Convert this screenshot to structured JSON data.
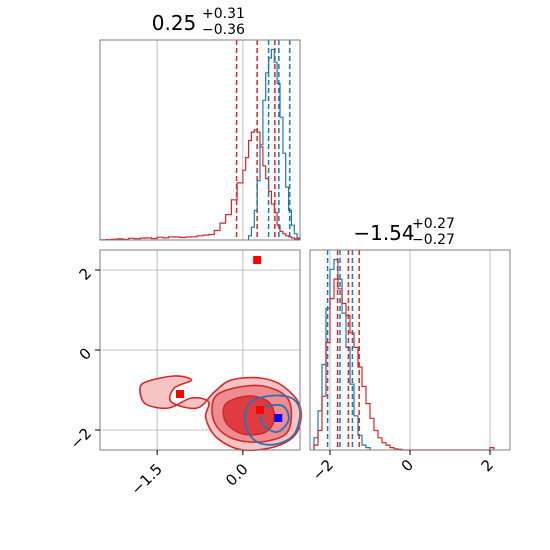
{
  "chart_data": [
    {
      "type": "histogram",
      "panel": "top-left",
      "title": {
        "value": "0.25",
        "upper": "+0.31",
        "lower": "−0.36"
      },
      "xlim": [
        -2.5,
        1.0
      ],
      "x_grid": [
        -1.5,
        0.0
      ],
      "grid": true,
      "series": [
        {
          "color": "#d62728",
          "edges": [
            -2.5,
            -2.4,
            -2.3,
            -2.2,
            -2.1,
            -2.0,
            -1.9,
            -1.8,
            -1.7,
            -1.6,
            -1.5,
            -1.4,
            -1.3,
            -1.2,
            -1.1,
            -1.0,
            -0.9,
            -0.8,
            -0.7,
            -0.6,
            -0.5,
            -0.4,
            -0.3,
            -0.2,
            -0.1,
            0.0,
            0.05,
            0.1,
            0.15,
            0.2,
            0.25,
            0.3,
            0.35,
            0.4,
            0.45,
            0.5,
            0.55,
            0.6,
            0.65,
            0.7,
            0.75,
            0.8,
            0.85,
            0.9,
            1.0
          ],
          "counts": [
            0.1,
            0.2,
            0.4,
            0.5,
            0.3,
            0.8,
            0.6,
            0.9,
            1.0,
            0.7,
            1.3,
            1.0,
            1.5,
            1.4,
            1.2,
            1.4,
            1.5,
            2.0,
            2.3,
            2.6,
            4.5,
            8,
            12,
            19,
            27,
            33,
            39,
            47,
            51,
            52,
            51,
            44,
            35,
            29,
            23,
            17,
            13,
            7,
            4,
            3,
            2,
            1.5,
            1,
            0.5
          ],
          "quantiles": [
            -0.11,
            0.25,
            0.56
          ]
        },
        {
          "color": "#1f77b4",
          "edges": [
            0.1,
            0.15,
            0.2,
            0.25,
            0.3,
            0.35,
            0.4,
            0.45,
            0.5,
            0.55,
            0.6,
            0.65,
            0.7,
            0.75,
            0.8,
            0.85,
            0.9,
            0.95,
            1.0
          ],
          "counts": [
            2,
            6,
            14,
            28,
            45,
            66,
            79,
            86,
            90,
            84,
            74,
            58,
            41,
            25,
            14,
            7,
            3,
            1
          ],
          "quantiles": [
            0.45,
            0.63,
            0.82
          ]
        }
      ]
    },
    {
      "type": "histogram",
      "panel": "bottom-right",
      "title": {
        "value": "−1.54",
        "upper": "+0.27",
        "lower": "−0.27"
      },
      "xlim": [
        -2.5,
        2.5
      ],
      "x_ticks": [
        -2,
        0,
        2
      ],
      "x_tick_labels": [
        "−2",
        "0",
        "2"
      ],
      "x_grid": [
        -2,
        0,
        2
      ],
      "grid": true,
      "series": [
        {
          "color": "#1f77b4",
          "edges": [
            -2.4,
            -2.3,
            -2.2,
            -2.1,
            -2.0,
            -1.9,
            -1.8,
            -1.7,
            -1.6,
            -1.5,
            -1.4,
            -1.3,
            -1.2,
            -1.1,
            -1.0
          ],
          "counts": [
            5,
            16,
            35,
            58,
            74,
            78,
            70,
            56,
            42,
            27,
            14,
            6,
            2,
            1
          ],
          "quantiles": [
            -2.06,
            -1.75,
            -1.44
          ]
        },
        {
          "color": "#d62728",
          "edges": [
            -2.4,
            -2.3,
            -2.2,
            -2.1,
            -2.0,
            -1.9,
            -1.8,
            -1.7,
            -1.6,
            -1.5,
            -1.4,
            -1.3,
            -1.2,
            -1.1,
            -1.0,
            -0.9,
            -0.8,
            -0.7,
            -0.6,
            -0.5,
            -0.4,
            -0.3,
            -0.2,
            2.0,
            2.1
          ],
          "counts": [
            2,
            8,
            22,
            44,
            62,
            70,
            66,
            60,
            55,
            48,
            42,
            34,
            26,
            19,
            13,
            8,
            5,
            3,
            2,
            1,
            0.5,
            0.3,
            0,
            1
          ],
          "quantiles": [
            -1.81,
            -1.54,
            -1.27
          ]
        }
      ]
    },
    {
      "type": "scatter-contour",
      "panel": "bottom-left",
      "xlim": [
        -2.5,
        1.0
      ],
      "ylim": [
        -2.5,
        2.5
      ],
      "x_ticks": [
        -1.5,
        0.0
      ],
      "x_tick_labels": [
        "−1.5",
        "0.0"
      ],
      "y_ticks": [
        -2,
        0,
        2
      ],
      "y_tick_labels": [
        "−2",
        "0",
        "2"
      ],
      "grid": true,
      "red_contours": [
        {
          "level": 1,
          "fill": "#f7c4c6",
          "points": [
            [
              -1.7,
              -0.8
            ],
            [
              -1.2,
              -0.65
            ],
            [
              -0.9,
              -0.75
            ],
            [
              -1.2,
              -0.95
            ],
            [
              -1.25,
              -1.3
            ],
            [
              -0.8,
              -1.45
            ],
            [
              -0.5,
              -1.05
            ],
            [
              -0.2,
              -0.75
            ],
            [
              0.3,
              -0.7
            ],
            [
              0.7,
              -0.9
            ],
            [
              1.0,
              -1.4
            ],
            [
              0.95,
              -2.05
            ],
            [
              0.6,
              -2.4
            ],
            [
              0.0,
              -2.5
            ],
            [
              -0.45,
              -2.2
            ],
            [
              -0.65,
              -1.7
            ],
            [
              -0.6,
              -1.3
            ],
            [
              -0.9,
              -1.2
            ],
            [
              -1.3,
              -1.45
            ],
            [
              -1.7,
              -1.35
            ],
            [
              -1.8,
              -1.0
            ]
          ]
        },
        {
          "level": 2,
          "fill": "#ee8c8f",
          "points": [
            [
              -0.5,
              -1.2
            ],
            [
              -0.15,
              -0.95
            ],
            [
              0.35,
              -0.9
            ],
            [
              0.75,
              -1.15
            ],
            [
              0.85,
              -1.6
            ],
            [
              0.75,
              -2.1
            ],
            [
              0.3,
              -2.3
            ],
            [
              -0.2,
              -2.2
            ],
            [
              -0.5,
              -1.8
            ]
          ]
        },
        {
          "level": 3,
          "fill": "#de3c40",
          "points": [
            [
              -0.3,
              -1.35
            ],
            [
              0.1,
              -1.15
            ],
            [
              0.45,
              -1.3
            ],
            [
              0.55,
              -1.7
            ],
            [
              0.4,
              -2.05
            ],
            [
              0.0,
              -2.1
            ],
            [
              -0.3,
              -1.8
            ]
          ]
        }
      ],
      "blue_contours": [
        {
          "level": 1,
          "points": [
            [
              0.1,
              -1.35
            ],
            [
              0.45,
              -1.15
            ],
            [
              0.85,
              -1.2
            ],
            [
              1.0,
              -1.55
            ],
            [
              0.9,
              -2.1
            ],
            [
              0.6,
              -2.35
            ],
            [
              0.25,
              -2.3
            ],
            [
              0.05,
              -1.9
            ]
          ]
        },
        {
          "level": 2,
          "points": [
            [
              0.35,
              -1.45
            ],
            [
              0.7,
              -1.4
            ],
            [
              0.8,
              -1.75
            ],
            [
              0.6,
              -2.05
            ],
            [
              0.35,
              -1.85
            ]
          ]
        }
      ],
      "markers": [
        {
          "color": "#ff0000",
          "x": 0.25,
          "y": 2.25
        },
        {
          "color": "#ff0000",
          "x": -1.1,
          "y": -1.1
        },
        {
          "color": "#ff0000",
          "x": 0.3,
          "y": -1.5
        },
        {
          "color": "#0000ff",
          "x": 0.62,
          "y": -1.7
        }
      ]
    }
  ]
}
